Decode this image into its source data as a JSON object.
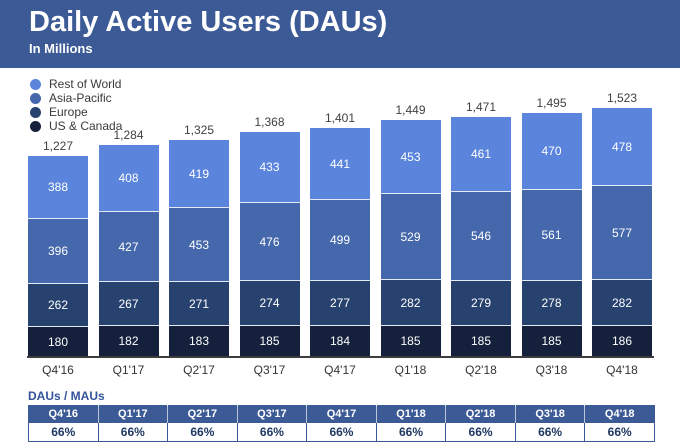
{
  "header": {
    "title": "Daily Active Users (DAUs)",
    "subtitle": "In Millions",
    "background_color": "#3c5a95"
  },
  "chart_data": {
    "type": "bar",
    "stacked": true,
    "title": "Daily Active Users (DAUs)",
    "subtitle": "In Millions",
    "unit": "millions",
    "categories": [
      "Q4'16",
      "Q1'17",
      "Q2'17",
      "Q3'17",
      "Q4'17",
      "Q1'18",
      "Q2'18",
      "Q3'18",
      "Q4'18"
    ],
    "series": [
      {
        "name": "US & Canada",
        "color": "#14203c",
        "values": [
          180,
          182,
          183,
          185,
          184,
          185,
          185,
          185,
          186
        ]
      },
      {
        "name": "Europe",
        "color": "#28426f",
        "values": [
          262,
          267,
          271,
          274,
          277,
          282,
          279,
          278,
          282
        ]
      },
      {
        "name": "Asia-Pacific",
        "color": "#4568ac",
        "values": [
          396,
          427,
          453,
          476,
          499,
          529,
          546,
          561,
          577
        ]
      },
      {
        "name": "Rest of World",
        "color": "#5b85dd",
        "values": [
          388,
          408,
          419,
          433,
          441,
          453,
          461,
          470,
          478
        ]
      }
    ],
    "totals": [
      1227,
      1284,
      1325,
      1368,
      1401,
      1449,
      1471,
      1495,
      1523
    ],
    "total_labels": [
      "1,227",
      "1,284",
      "1,325",
      "1,368",
      "1,401",
      "1,449",
      "1,471",
      "1,495",
      "1,523"
    ],
    "legend_position": "top-left",
    "grid": false,
    "ylim": [
      0,
      1600
    ]
  },
  "ratio_table": {
    "label": "DAUs / MAUs",
    "columns": [
      "Q4'16",
      "Q1'17",
      "Q2'17",
      "Q3'17",
      "Q4'17",
      "Q1'18",
      "Q2'18",
      "Q3'18",
      "Q4'18"
    ],
    "values": [
      "66%",
      "66%",
      "66%",
      "66%",
      "66%",
      "66%",
      "66%",
      "66%",
      "66%"
    ]
  }
}
